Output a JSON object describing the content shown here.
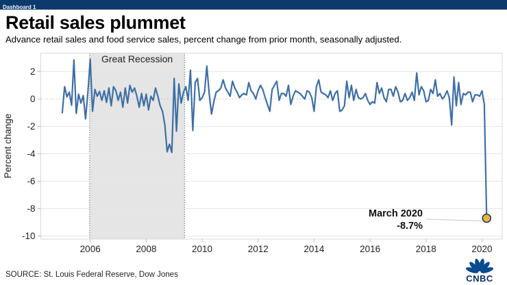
{
  "window": {
    "tab_label": "Dashboard 1"
  },
  "header": {
    "title": "Retail sales plummet",
    "subtitle": "Advance retail sales and food service sales, percent change from prior month, seasonally adjusted."
  },
  "chart_data": {
    "type": "line",
    "title": "Retail sales plummet",
    "ylabel": "Percent change",
    "xlabel": "",
    "ylim": [
      -10.4,
      3.35
    ],
    "xlim": [
      2004.25,
      2020.7
    ],
    "yticks": [
      2,
      0,
      -2,
      -4,
      -6,
      -8,
      -10
    ],
    "xticks": [
      2006,
      2008,
      2010,
      2012,
      2014,
      2016,
      2018,
      2020
    ],
    "zero_reference_line": 0,
    "grid": true,
    "recession_band": {
      "label": "Great Recession",
      "x_start": 2005.98,
      "x_end": 2009.37
    },
    "series": [
      {
        "name": "Percent change from prior month",
        "start_month": "2005-01",
        "end_month": "2020-03",
        "monthly_values": [
          -1.0,
          0.9,
          0.15,
          0.5,
          -0.45,
          2.85,
          -1.05,
          0.35,
          -0.3,
          0.25,
          -1.45,
          0.5,
          2.9,
          -0.9,
          0.7,
          0.2,
          0.55,
          -0.1,
          0.6,
          -0.25,
          0.8,
          -0.5,
          0.9,
          0.6,
          -0.1,
          0.5,
          -0.6,
          0.8,
          -0.3,
          1.0,
          0.5,
          0.8,
          0.2,
          -0.6,
          0.4,
          -0.5,
          0.35,
          -0.8,
          0.2,
          -0.1,
          0.8,
          0.2,
          -0.5,
          -0.9,
          -1.9,
          -3.85,
          -3.3,
          -3.9,
          1.5,
          -2.35,
          1.1,
          -0.3,
          0.5,
          0.9,
          -0.1,
          2.1,
          -2.3,
          1.2,
          1.5,
          -0.1,
          0.1,
          0.5,
          2.4,
          0.4,
          -1.1,
          -0.2,
          0.5,
          0.6,
          0.8,
          1.4,
          0.8,
          0.5,
          0.2,
          1.3,
          0.8,
          0.5,
          0.1,
          0.3,
          0.4,
          0.3,
          1.2,
          0.6,
          0.4,
          0.0,
          0.6,
          1.0,
          0.7,
          0.1,
          -0.4,
          -0.9,
          0.7,
          1.0,
          1.3,
          -0.1,
          0.4,
          0.4,
          0.2,
          1.0,
          -0.4,
          0.2,
          0.6,
          0.5,
          0.4,
          0.2,
          0.0,
          0.6,
          0.5,
          0.1,
          -0.9,
          0.9,
          1.4,
          0.5,
          0.4,
          0.3,
          0.1,
          0.6,
          -0.1,
          0.4,
          0.6,
          -0.9,
          -0.8,
          -0.5,
          1.3,
          0.1,
          1.0,
          -0.1,
          0.7,
          0.1,
          0.0,
          0.1,
          0.4,
          -0.1,
          -0.4,
          -0.2,
          -0.3,
          1.2,
          0.4,
          0.8,
          0.1,
          -0.2,
          0.7,
          0.7,
          0.2,
          0.9,
          0.5,
          -0.2,
          -0.1,
          0.4,
          -0.1,
          0.1,
          0.5,
          -0.1,
          1.9,
          0.3,
          0.9,
          0.6,
          -0.2,
          -0.1,
          0.7,
          0.4,
          1.4,
          0.2,
          0.4,
          0.0,
          0.2,
          0.6,
          0.1,
          -1.9,
          1.6,
          -0.5,
          1.2,
          -0.4,
          0.4,
          0.3,
          0.5,
          0.5,
          -0.2,
          0.3,
          0.3,
          0.2,
          0.6,
          -0.4,
          -8.7
        ]
      }
    ],
    "annotation": {
      "line1": "March 2020",
      "line2": "-8.7%",
      "value": -8.7
    },
    "colors": {
      "line": "#3d6fa6",
      "dot_fill": "#eab53a",
      "dot_stroke": "#1c3a5e",
      "band": "#e5e5e5",
      "band_border": "#3a3a3a",
      "grid": "#e6e6e6",
      "zero_line": "#bfbfbf",
      "axis_border": "#d9d9d9",
      "topbar": "#0d3a6d"
    }
  },
  "footer": {
    "source": "SOURCE: St. Louis Federal Reserve, Dow Jones",
    "logo": "CNBC"
  }
}
